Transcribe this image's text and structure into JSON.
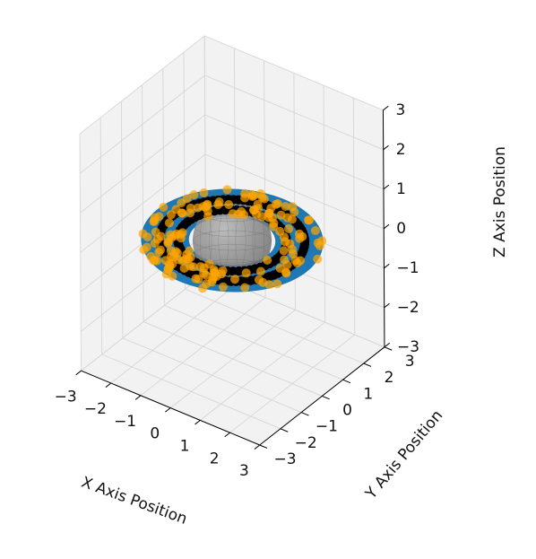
{
  "chart_data": {
    "type": "scatter",
    "projection": "3d",
    "title": "",
    "xlabel": "X Axis Position",
    "ylabel": "Y Axis Position",
    "zlabel": "Z Axis Position",
    "xlim": [
      -3,
      3
    ],
    "ylim": [
      -3,
      3
    ],
    "zlim": [
      -3,
      3
    ],
    "xticks": [
      "−3",
      "−2",
      "−1",
      "0",
      "1",
      "2",
      "3"
    ],
    "yticks": [
      "−3",
      "−2",
      "−1",
      "0",
      "1",
      "2",
      "3"
    ],
    "zticks": [
      "−3",
      "−2",
      "−1",
      "0",
      "1",
      "2",
      "3"
    ],
    "grid": true,
    "legend": "none",
    "elements": [
      {
        "kind": "ring-surface",
        "color": "#1f77b4",
        "inner_radius": 1.2,
        "outer_radius": 2.5,
        "z": 0
      },
      {
        "kind": "sphere",
        "color": "#808080",
        "radius": 1.0,
        "center": [
          0,
          0,
          0
        ]
      },
      {
        "kind": "scatter-ring",
        "color": "#000000",
        "radius": 1.5,
        "z": 0
      },
      {
        "kind": "scatter-ring",
        "color": "#000000",
        "radius": 2.0,
        "z": 0
      },
      {
        "kind": "scatter-band",
        "color": "#ffa500",
        "alpha": 0.7,
        "r_min": 1.3,
        "r_max": 2.5,
        "z": 0
      }
    ]
  }
}
